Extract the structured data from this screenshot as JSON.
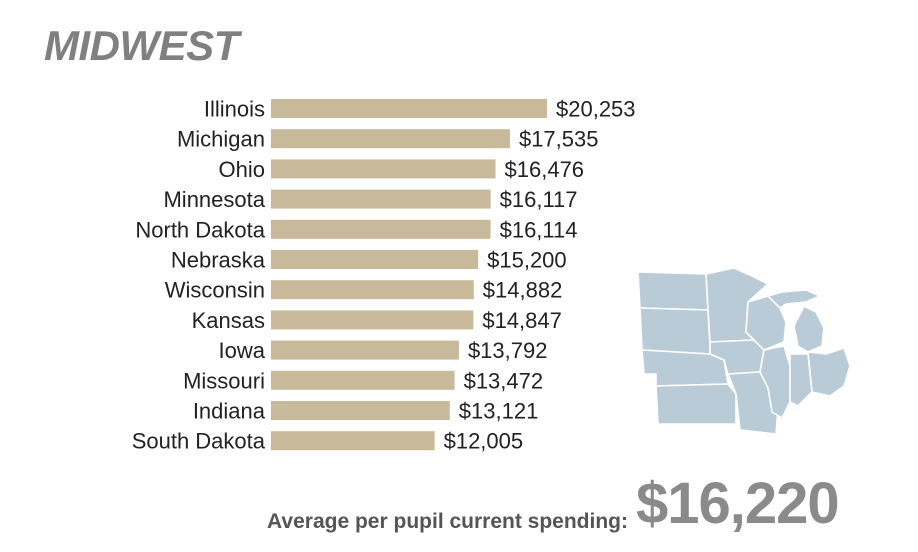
{
  "title": "MIDWEST",
  "average": {
    "label": "Average per pupil current spending:",
    "value": "$16,220"
  },
  "colors": {
    "bar": "#c7b99a",
    "title": "#808080",
    "map_fill": "#b9cbd7",
    "map_stroke": "#ffffff"
  },
  "chart_data": {
    "type": "bar",
    "orientation": "horizontal",
    "title": "MIDWEST",
    "categories": [
      "Illinois",
      "Michigan",
      "Ohio",
      "Minnesota",
      "North Dakota",
      "Nebraska",
      "Wisconsin",
      "Kansas",
      "Iowa",
      "Missouri",
      "Indiana",
      "South Dakota"
    ],
    "values": [
      20253,
      17535,
      16476,
      16117,
      16114,
      15200,
      14882,
      14847,
      13792,
      13472,
      13121,
      12005
    ],
    "labels": [
      "$20,253",
      "$17,535",
      "$16,476",
      "$16,117",
      "$16,114",
      "$15,200",
      "$14,882",
      "$14,847",
      "$13,792",
      "$13,472",
      "$13,121",
      "$12,005"
    ],
    "grid": false,
    "legend": "none"
  }
}
